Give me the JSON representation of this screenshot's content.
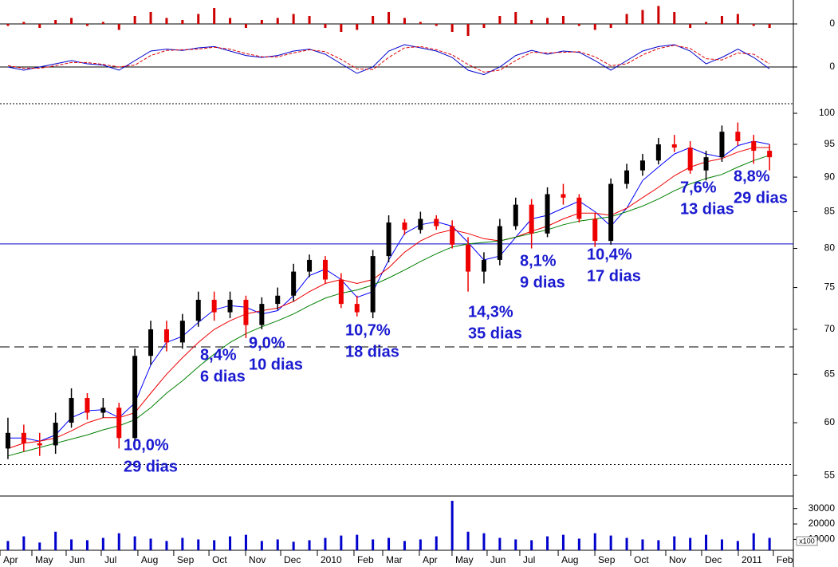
{
  "chart_data": [
    {
      "type": "bar",
      "color": "#cc0000",
      "ylim": [
        -6,
        12
      ],
      "yticks": [
        0
      ],
      "values": [
        -1,
        1,
        -2,
        2,
        3,
        -1,
        1,
        -3,
        4,
        6,
        3,
        2,
        5,
        8,
        3,
        -2,
        2,
        3,
        5,
        4,
        -2,
        -4,
        -3,
        4,
        6,
        3,
        1,
        -1,
        -4,
        -6,
        -2,
        4,
        6,
        2,
        3,
        4,
        -1,
        -3,
        -2,
        5,
        7,
        9,
        6,
        -2,
        1,
        4,
        5,
        -1,
        -2
      ]
    },
    {
      "type": "line",
      "ylim": [
        -2,
        4
      ],
      "yticks": [
        0
      ],
      "series": [
        {
          "color": "#0000cc",
          "style": "solid",
          "values": [
            0,
            -0.5,
            0,
            0.5,
            1,
            0.5,
            0.3,
            -0.5,
            1,
            2.5,
            2.8,
            2.6,
            3,
            3.2,
            2.5,
            1.8,
            1.5,
            1.8,
            2.5,
            2.8,
            2,
            0.5,
            -1,
            0,
            2.5,
            3.5,
            3,
            2.5,
            1.5,
            -0.5,
            -1.2,
            0,
            1.8,
            2.6,
            2,
            2.5,
            2.3,
            1,
            -0.5,
            1,
            2.5,
            3.2,
            3.5,
            2.5,
            0.5,
            1.5,
            2.8,
            1.5,
            -0.3
          ]
        },
        {
          "color": "#dd0000",
          "style": "dashed",
          "values": [
            0.2,
            -0.2,
            -0.2,
            0.2,
            0.7,
            0.7,
            0.4,
            0,
            0.3,
            1.8,
            2.6,
            2.7,
            2.8,
            3.1,
            2.8,
            2.1,
            1.6,
            1.6,
            2.2,
            2.7,
            2.4,
            1.2,
            -0.3,
            -0.4,
            1.5,
            3,
            3.2,
            2.7,
            1.9,
            0.4,
            -0.8,
            -0.5,
            1,
            2.3,
            2.2,
            2.3,
            2.4,
            1.6,
            0.2,
            0.5,
            1.9,
            2.9,
            3.4,
            2.9,
            1.3,
            1.1,
            2.2,
            2,
            0.5
          ]
        }
      ]
    },
    {
      "type": "candlestick",
      "log_scale": true,
      "ylim": [
        53.3,
        101.6
      ],
      "yticks": [
        100,
        95,
        90,
        85,
        80,
        75,
        70,
        65,
        60,
        55
      ],
      "up_color": "#000000",
      "down_color": "#ee0000",
      "open": [
        57.5,
        59,
        58,
        57.8,
        60,
        62.5,
        61,
        61.5,
        58.5,
        67,
        70,
        68.5,
        71,
        73.5,
        72,
        73.5,
        70.5,
        73,
        74,
        77,
        78.5,
        76,
        73,
        72,
        79,
        83.5,
        82.5,
        84,
        83,
        80.5,
        77,
        78.5,
        83,
        86,
        82,
        87.5,
        87,
        84,
        81,
        89,
        91,
        92.5,
        95,
        94.5,
        91,
        93,
        97,
        95.5,
        94
      ],
      "high": [
        60.5,
        59.8,
        59,
        61,
        63.5,
        63,
        62.5,
        62,
        67.8,
        71,
        71,
        71.8,
        74.5,
        74.5,
        74.5,
        74,
        73.8,
        75,
        78,
        79.2,
        79,
        76.8,
        74,
        79.8,
        84.5,
        84,
        85,
        84.5,
        83.8,
        81.5,
        79.5,
        84,
        87,
        86.8,
        88.5,
        89,
        87.5,
        84.8,
        89.8,
        92,
        93.5,
        96,
        96.5,
        95.5,
        94,
        98,
        98.5,
        96.5,
        95
      ],
      "low": [
        56.5,
        57.2,
        56.8,
        57,
        59.5,
        60.3,
        60.5,
        57.5,
        58,
        66,
        67.5,
        67.8,
        70.3,
        71,
        71.3,
        69,
        70,
        72.3,
        73.3,
        76.3,
        75.5,
        72.5,
        71.5,
        71.3,
        78.2,
        81.8,
        82,
        82.5,
        80,
        74.5,
        75.5,
        77.8,
        82.5,
        80,
        81.5,
        86,
        83.5,
        80.2,
        80.5,
        88.3,
        90.2,
        91.9,
        93.8,
        90.5,
        89.5,
        92.3,
        94.8,
        92,
        91
      ],
      "close": [
        59,
        58,
        57.8,
        60,
        62.5,
        61,
        61.5,
        58.5,
        67,
        70,
        68.5,
        71,
        73.5,
        72,
        73.5,
        70.5,
        73,
        74,
        77,
        78.5,
        76,
        73,
        72,
        79,
        83.5,
        82.5,
        84,
        83,
        80.5,
        77,
        78.5,
        83,
        86,
        82,
        87.5,
        87,
        84,
        81,
        89,
        91,
        92.5,
        95,
        94.5,
        91,
        93,
        97,
        95.5,
        94,
        93
      ],
      "series": [
        {
          "color": "#0000ff",
          "values": [
            58.5,
            58.5,
            58.2,
            58.8,
            60.5,
            61.2,
            61.3,
            60.5,
            62,
            66,
            68.5,
            69.2,
            70.8,
            72.3,
            72.8,
            72.6,
            71.8,
            72.2,
            74,
            76.5,
            77.3,
            76,
            73.8,
            74.5,
            78.5,
            82,
            83.2,
            83.6,
            83,
            80.8,
            78.5,
            79,
            81.5,
            84,
            84.5,
            85.5,
            86.5,
            85,
            83,
            85.5,
            89.5,
            91.5,
            93.5,
            94.5,
            93.5,
            93,
            94.8,
            95.5,
            95
          ]
        },
        {
          "color": "#ee0000",
          "values": [
            57.5,
            58,
            58.2,
            58.5,
            59.2,
            60,
            60.5,
            60.5,
            61,
            63,
            65,
            66.8,
            68.5,
            70,
            71,
            71.8,
            72.2,
            72.5,
            73.3,
            74.5,
            75.5,
            76,
            75.5,
            76,
            77.5,
            79.5,
            81,
            82,
            82.5,
            82,
            81.3,
            81,
            81.5,
            82.3,
            83,
            84,
            84.8,
            84.8,
            84.5,
            85.5,
            87,
            88.5,
            90.2,
            91.5,
            92.3,
            92.8,
            93.8,
            94.5,
            94.5
          ]
        },
        {
          "color": "#008000",
          "values": [
            56.8,
            57.2,
            57.6,
            58,
            58.4,
            58.8,
            59.3,
            59.7,
            60.3,
            61.5,
            63,
            64.3,
            65.8,
            67.2,
            68.5,
            69.5,
            70.3,
            71,
            71.8,
            72.8,
            73.7,
            74.3,
            74.7,
            75.3,
            76.2,
            77.2,
            78.3,
            79.3,
            80.2,
            80.6,
            80.8,
            81,
            81.5,
            82,
            82.5,
            83.2,
            83.7,
            84,
            84.3,
            85,
            85.8,
            86.8,
            88,
            89,
            89.8,
            90.4,
            91.5,
            92.5,
            93.3
          ]
        }
      ],
      "reference_lines": [
        {
          "value": 80.6,
          "color": "#0000cc",
          "style": "solid"
        },
        {
          "value": 68.0,
          "color": "#000000",
          "style": "dashed"
        },
        {
          "value": 56.0,
          "color": "#000000",
          "style": "dotted"
        }
      ],
      "annotations": [
        {
          "lines": [
            "10,0%",
            "29 dias"
          ]
        },
        {
          "lines": [
            "8,4%",
            "6 dias"
          ]
        },
        {
          "lines": [
            "9,0%",
            "10 dias"
          ]
        },
        {
          "lines": [
            "10,7%",
            "18 dias"
          ]
        },
        {
          "lines": [
            "14,3%",
            "35 dias"
          ]
        },
        {
          "lines": [
            "8,1%",
            "9 dias"
          ]
        },
        {
          "lines": [
            "10,4%",
            "17 dias"
          ]
        },
        {
          "lines": [
            "7,6%",
            "13 dias"
          ]
        },
        {
          "lines": [
            "8,8%",
            "29 dias"
          ]
        }
      ]
    },
    {
      "type": "bar",
      "color": "#0000cc",
      "ylim": [
        3000,
        35500
      ],
      "yticks": [
        10000,
        20000,
        30000
      ],
      "ylabel": "x100",
      "values": [
        9000,
        12000,
        8000,
        15000,
        10000,
        9500,
        11000,
        14000,
        12000,
        10500,
        9000,
        11000,
        10000,
        9500,
        12000,
        13000,
        9000,
        10000,
        8500,
        9500,
        11000,
        12500,
        13000,
        10000,
        11000,
        9000,
        10000,
        12000,
        35000,
        15000,
        14000,
        11000,
        10000,
        9500,
        12000,
        13000,
        10500,
        14000,
        12500,
        11000,
        10000,
        9500,
        12000,
        11000,
        13000,
        10000,
        9000,
        14000,
        11000
      ],
      "xlim": [
        0,
        50
      ],
      "xticks": [
        {
          "value": 0,
          "label": "Apr"
        },
        {
          "value": 2.01,
          "label": "May"
        },
        {
          "value": 4.17,
          "label": "Jun"
        },
        {
          "value": 6.38,
          "label": "Jul"
        },
        {
          "value": 8.69,
          "label": "Aug"
        },
        {
          "value": 10.95,
          "label": "Sep"
        },
        {
          "value": 13.17,
          "label": "Oct"
        },
        {
          "value": 15.48,
          "label": "Nov"
        },
        {
          "value": 17.69,
          "label": "Dec"
        },
        {
          "value": 20,
          "label": "2010"
        },
        {
          "value": 22.31,
          "label": "Feb"
        },
        {
          "value": 24.12,
          "label": "Mar"
        },
        {
          "value": 26.43,
          "label": "Apr"
        },
        {
          "value": 28.49,
          "label": "May"
        },
        {
          "value": 30.7,
          "label": "Jun"
        },
        {
          "value": 32.76,
          "label": "Jul"
        },
        {
          "value": 35.18,
          "label": "Aug"
        },
        {
          "value": 37.49,
          "label": "Sep"
        },
        {
          "value": 39.75,
          "label": "Oct"
        },
        {
          "value": 41.96,
          "label": "Nov"
        },
        {
          "value": 44.22,
          "label": "Dec"
        },
        {
          "value": 46.53,
          "label": "2011"
        },
        {
          "value": 48.74,
          "label": "Feb"
        }
      ]
    }
  ]
}
